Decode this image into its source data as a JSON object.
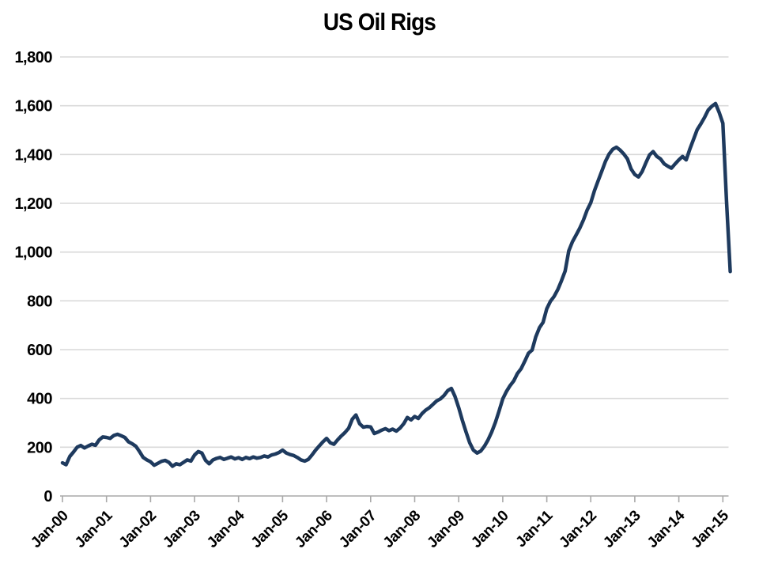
{
  "page": {
    "title": "US Oil Rigs"
  },
  "chart_data": {
    "type": "line",
    "title": "US Oil Rigs",
    "series_name": "US oil rig count",
    "x_start": "Jan-00",
    "x_interval": "monthly",
    "x_tick_labels": [
      "Jan-00",
      "Jan-01",
      "Jan-02",
      "Jan-03",
      "Jan-04",
      "Jan-05",
      "Jan-06",
      "Jan-07",
      "Jan-08",
      "Jan-09",
      "Jan-10",
      "Jan-11",
      "Jan-12",
      "Jan-13",
      "Jan-14",
      "Jan-15"
    ],
    "y_ticks": [
      0,
      200,
      400,
      600,
      800,
      1000,
      1200,
      1400,
      1600,
      1800
    ],
    "y_tick_labels": [
      "0",
      "200",
      "400",
      "600",
      "800",
      "1,000",
      "1,200",
      "1,400",
      "1,600",
      "1,800"
    ],
    "ylim": [
      0,
      1800
    ],
    "grid": "horizontal-only",
    "legend": "none",
    "values": [
      136,
      128,
      162,
      180,
      200,
      207,
      197,
      205,
      212,
      208,
      230,
      242,
      240,
      236,
      248,
      253,
      247,
      240,
      222,
      214,
      204,
      182,
      158,
      148,
      140,
      126,
      134,
      142,
      146,
      138,
      122,
      132,
      128,
      138,
      148,
      143,
      168,
      182,
      176,
      146,
      132,
      148,
      154,
      158,
      150,
      155,
      160,
      152,
      157,
      150,
      158,
      153,
      160,
      155,
      158,
      164,
      160,
      168,
      172,
      178,
      188,
      176,
      170,
      166,
      158,
      148,
      143,
      150,
      168,
      188,
      205,
      222,
      236,
      218,
      212,
      230,
      246,
      260,
      278,
      315,
      332,
      296,
      282,
      285,
      283,
      256,
      262,
      270,
      276,
      268,
      274,
      266,
      278,
      296,
      322,
      312,
      326,
      318,
      338,
      352,
      362,
      376,
      390,
      398,
      412,
      432,
      441,
      408,
      362,
      310,
      262,
      218,
      188,
      176,
      184,
      204,
      230,
      262,
      302,
      348,
      398,
      428,
      452,
      472,
      502,
      522,
      552,
      585,
      598,
      652,
      690,
      712,
      768,
      798,
      818,
      846,
      882,
      922,
      1005,
      1042,
      1070,
      1098,
      1132,
      1172,
      1202,
      1252,
      1292,
      1332,
      1372,
      1402,
      1422,
      1430,
      1418,
      1402,
      1382,
      1340,
      1318,
      1308,
      1330,
      1365,
      1398,
      1412,
      1392,
      1382,
      1362,
      1352,
      1344,
      1362,
      1378,
      1392,
      1378,
      1422,
      1462,
      1502,
      1526,
      1552,
      1582,
      1598,
      1609,
      1572,
      1528,
      1210,
      920
    ],
    "line_color": "#1e3a5e",
    "gridline_color": "#d9d9d9",
    "axis_color": "#a9a9a9",
    "text_color": "#000000",
    "background_color": "#ffffff"
  }
}
